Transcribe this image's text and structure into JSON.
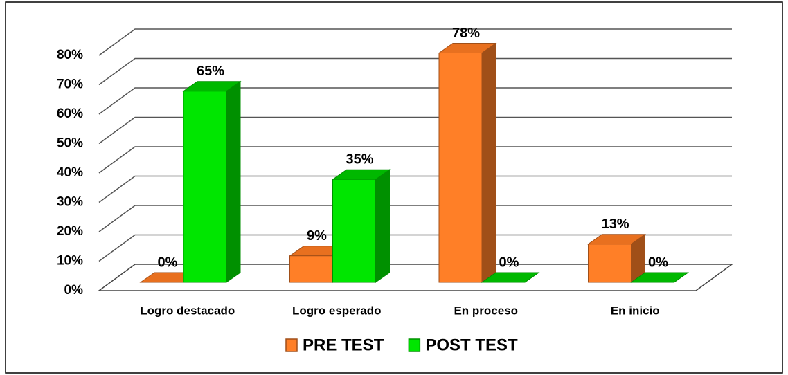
{
  "chart_data": {
    "type": "bar3d",
    "categories": [
      "Logro destacado",
      "Logro esperado",
      "En proceso",
      "En inicio"
    ],
    "series": [
      {
        "name": "PRE TEST",
        "color": "#ff7f27",
        "values": [
          0,
          9,
          78,
          13
        ],
        "value_labels": [
          "0%",
          "9%",
          "78%",
          "13%"
        ]
      },
      {
        "name": "POST TEST",
        "color": "#00e600",
        "values": [
          65,
          35,
          0,
          0
        ],
        "value_labels": [
          "65%",
          "35%",
          "0%",
          "0%"
        ]
      }
    ],
    "ylim": [
      0,
      80
    ],
    "yticks": [
      {
        "value": 0,
        "label": "0%"
      },
      {
        "value": 10,
        "label": "10%"
      },
      {
        "value": 20,
        "label": "20%"
      },
      {
        "value": 30,
        "label": "30%"
      },
      {
        "value": 40,
        "label": "40%"
      },
      {
        "value": 50,
        "label": "50%"
      },
      {
        "value": 60,
        "label": "60%"
      },
      {
        "value": 70,
        "label": "70%"
      },
      {
        "value": 80,
        "label": "80%"
      }
    ],
    "grid": true,
    "legend": "bottom"
  }
}
